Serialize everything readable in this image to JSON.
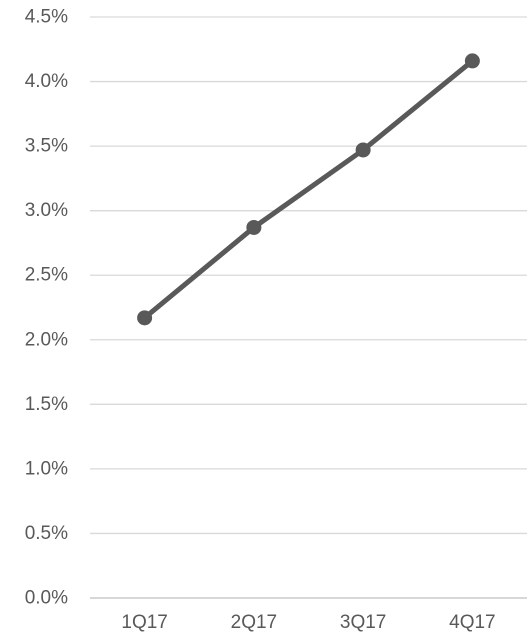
{
  "chart_data": {
    "type": "line",
    "categories": [
      "1Q17",
      "2Q17",
      "3Q17",
      "4Q17"
    ],
    "series": [
      {
        "values": [
          2.17,
          2.87,
          3.47,
          4.16
        ]
      }
    ],
    "y_tick_labels": [
      "0.0%",
      "0.5%",
      "1.0%",
      "1.5%",
      "2.0%",
      "2.5%",
      "3.0%",
      "3.5%",
      "4.0%",
      "4.5%"
    ],
    "y_ticks": [
      0,
      0.5,
      1.0,
      1.5,
      2.0,
      2.5,
      3.0,
      3.5,
      4.0,
      4.5
    ],
    "ylim": [
      0,
      4.5
    ],
    "grid": true,
    "legend": "none",
    "title": "",
    "xlabel": "",
    "ylabel": "",
    "colors": {
      "line": "#595959",
      "marker": "#595959",
      "grid": "#d9d9d9",
      "axis": "#bfbfbf",
      "text": "#595959"
    }
  }
}
